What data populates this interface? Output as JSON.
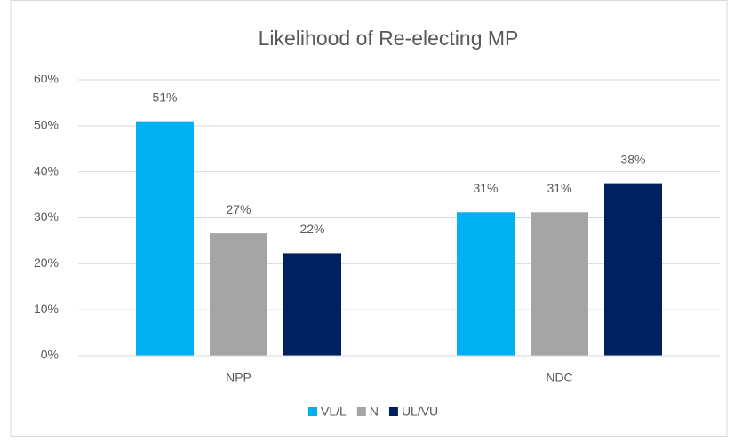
{
  "chart_data": {
    "type": "bar",
    "title": "Likelihood of Re-electing MP",
    "categories": [
      "NPP",
      "NDC"
    ],
    "series": [
      {
        "name": "VL/L",
        "color": "#00b0f0",
        "values": [
          51,
          31.2
        ],
        "value_labels": [
          "51%",
          "31%"
        ]
      },
      {
        "name": "N",
        "color": "#a5a5a5",
        "values": [
          26.6,
          31.2
        ],
        "value_labels": [
          "27%",
          "31%"
        ]
      },
      {
        "name": "UL/VU",
        "color": "#002060",
        "values": [
          22.3,
          37.5
        ],
        "value_labels": [
          "22%",
          "38%"
        ]
      }
    ],
    "ylim": [
      0,
      60
    ],
    "yticks": [
      {
        "value": 0,
        "label": "0%"
      },
      {
        "value": 10,
        "label": "10%"
      },
      {
        "value": 20,
        "label": "20%"
      },
      {
        "value": 30,
        "label": "30%"
      },
      {
        "value": 40,
        "label": "40%"
      },
      {
        "value": 50,
        "label": "50%"
      },
      {
        "value": 60,
        "label": "60%"
      }
    ],
    "grid": true,
    "legend": "bottom"
  }
}
